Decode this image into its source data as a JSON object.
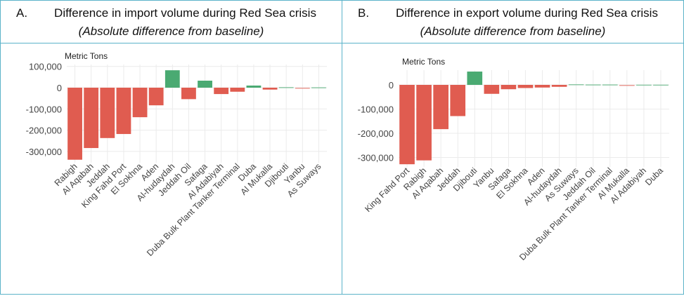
{
  "chart_data": [
    {
      "type": "bar",
      "panel_letter": "A.",
      "title": "Difference in import volume during Red Sea crisis",
      "subtitle": "(Absolute difference from baseline)",
      "ylabel": "Metric Tons",
      "ylim": [
        -350000,
        110000
      ],
      "yticks": [
        100000,
        0,
        -100000,
        -200000,
        -300000
      ],
      "ytick_labels": [
        "100,000",
        "0",
        "-100,000",
        "-200,000",
        "-300,000"
      ],
      "grid": true,
      "categories": [
        "Rabigh",
        "Al Aqabah",
        "Jeddah",
        "King Fahd Port",
        "El Sokhna",
        "Aden",
        "Al-hudaydah",
        "Jeddah Oil",
        "Safaga",
        "Al Adabiyah",
        "Duba Bulk Plant Tanker Terminal",
        "Duba",
        "Al Mukalla",
        "Djibouti",
        "Yanbu",
        "As Suways"
      ],
      "values": [
        -339000,
        -284000,
        -237000,
        -218000,
        -139000,
        -83000,
        82000,
        -54000,
        33000,
        -30000,
        -19000,
        10000,
        -9000,
        3000,
        -2000,
        2000
      ]
    },
    {
      "type": "bar",
      "panel_letter": "B.",
      "title": "Difference in export volume during Red Sea crisis",
      "subtitle": "(Absolute difference from baseline)",
      "ylabel": "Metric Tons",
      "ylim": [
        -340000,
        60000
      ],
      "yticks": [
        0,
        -100000,
        -200000,
        -300000
      ],
      "ytick_labels": [
        "0",
        "-100,000",
        "-200,000",
        "-300,000"
      ],
      "grid": true,
      "categories": [
        "King Fahd Port",
        "Rabigh",
        "Al Aqabah",
        "Jeddah",
        "Djibouti",
        "Yanbu",
        "Safaga",
        "El Sokhna",
        "Aden",
        "Al-hudaydah",
        "As Suways",
        "Jeddah Oil",
        "Duba Bulk Plant Tanker Terminal",
        "Al Mukalla",
        "Al Adabiyah",
        "Duba"
      ],
      "values": [
        -328000,
        -312000,
        -183000,
        -129000,
        55000,
        -37000,
        -18000,
        -13000,
        -11000,
        -8000,
        3000,
        2000,
        2000,
        -3000,
        1000,
        1000
      ]
    }
  ],
  "colors": {
    "negative": "#e05c50",
    "positive": "#4aaa72",
    "border": "#5bb3c9"
  }
}
